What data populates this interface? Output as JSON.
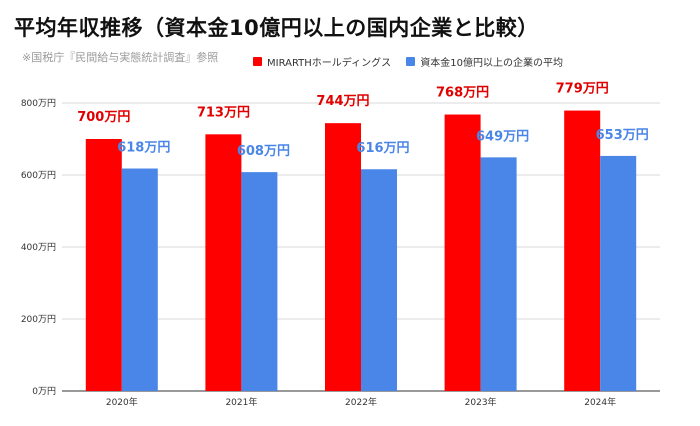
{
  "title": "平均年収推移（資本金10億円以上の国内企業と比較）",
  "source_note": "※国税庁『民間給与実態統計調査』参照",
  "colors": {
    "series1": "#ff0000",
    "series2": "#4a86e8",
    "label1": "#e00000",
    "label2": "#4a86e8",
    "grid": "#cccccc"
  },
  "chart_data": {
    "type": "bar",
    "title": "平均年収推移（資本金10億円以上の国内企業と比較）",
    "categories": [
      "2020年",
      "2021年",
      "2022年",
      "2023年",
      "2024年"
    ],
    "series": [
      {
        "name": "MIRARTHホールディングス",
        "values": [
          700,
          713,
          744,
          768,
          779
        ],
        "labels": [
          "700万円",
          "713万円",
          "744万円",
          "768万円",
          "779万円"
        ]
      },
      {
        "name": "資本金10億円以上の企業の平均",
        "values": [
          618,
          608,
          616,
          649,
          653
        ],
        "labels": [
          "618万円",
          "608万円",
          "616万円",
          "649万円",
          "653万円"
        ]
      }
    ],
    "yticks": [
      0,
      200,
      400,
      600,
      800
    ],
    "ytick_labels": [
      "0万円",
      "200万円",
      "400万円",
      "600万円",
      "800万円"
    ],
    "ylim": [
      0,
      800
    ],
    "grid": true,
    "legend_position": "top"
  }
}
